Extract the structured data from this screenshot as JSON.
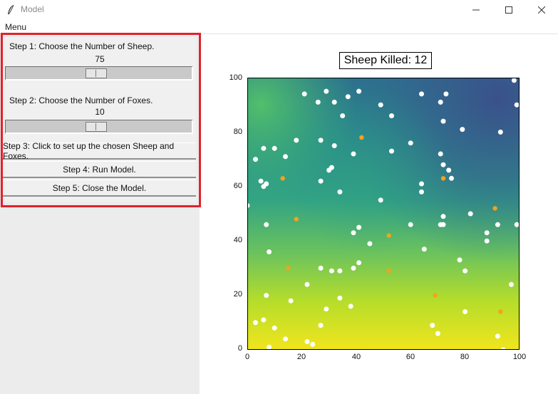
{
  "window": {
    "title": "Model"
  },
  "menu": {
    "label": "Menu"
  },
  "controls": {
    "step1_label": "Step 1: Choose the Number of Sheep.",
    "sheep_value": "75",
    "sheep_slider_fraction": 0.48,
    "step2_label": "Step 2: Choose the Number of Foxes.",
    "fox_value": "10",
    "fox_slider_fraction": 0.48,
    "step3_label": "Step 3: Click to set up the chosen Sheep and Foxes.",
    "step4_label": "Step 4: Run Model.",
    "step5_label": "Step 5: Close the Model."
  },
  "plot": {
    "title": "Sheep Killed: 12",
    "xticks": [
      "0",
      "20",
      "40",
      "60",
      "80",
      "100"
    ],
    "yticks": [
      "100",
      "80",
      "60",
      "40",
      "20",
      "0"
    ]
  },
  "chart_data": {
    "type": "scatter",
    "background": "heatmap",
    "xlim": [
      0,
      100
    ],
    "ylim": [
      0,
      100
    ],
    "colors": {
      "sheep": "#ffffff",
      "foxes": "#f5a21b",
      "accent": "#e0222b"
    },
    "sheep": [
      [
        21,
        94
      ],
      [
        26,
        91
      ],
      [
        29,
        95
      ],
      [
        32,
        91
      ],
      [
        37,
        93
      ],
      [
        41,
        95
      ],
      [
        49,
        90
      ],
      [
        64,
        94
      ],
      [
        71,
        91
      ],
      [
        73,
        94
      ],
      [
        53,
        86
      ],
      [
        35,
        86
      ],
      [
        72,
        84
      ],
      [
        79,
        81
      ],
      [
        98,
        99
      ],
      [
        99,
        90
      ],
      [
        93,
        80
      ],
      [
        10,
        74
      ],
      [
        6,
        74
      ],
      [
        3,
        70
      ],
      [
        14,
        71
      ],
      [
        27,
        77
      ],
      [
        32,
        75
      ],
      [
        39,
        72
      ],
      [
        53,
        73
      ],
      [
        71,
        72
      ],
      [
        60,
        76
      ],
      [
        18,
        77
      ],
      [
        72,
        68
      ],
      [
        74,
        66
      ],
      [
        75,
        63
      ],
      [
        30,
        66
      ],
      [
        31,
        67
      ],
      [
        5,
        62
      ],
      [
        7,
        61
      ],
      [
        6,
        60
      ],
      [
        27,
        62
      ],
      [
        34,
        58
      ],
      [
        64,
        61
      ],
      [
        64,
        58
      ],
      [
        49,
        55
      ],
      [
        0,
        53
      ],
      [
        82,
        50
      ],
      [
        92,
        46
      ],
      [
        99,
        46
      ],
      [
        88,
        43
      ],
      [
        71,
        46
      ],
      [
        72,
        49
      ],
      [
        72,
        46
      ],
      [
        60,
        46
      ],
      [
        7,
        46
      ],
      [
        39,
        43
      ],
      [
        41,
        45
      ],
      [
        45,
        39
      ],
      [
        88,
        40
      ],
      [
        65,
        37
      ],
      [
        8,
        36
      ],
      [
        27,
        30
      ],
      [
        31,
        29
      ],
      [
        34,
        29
      ],
      [
        39,
        30
      ],
      [
        41,
        32
      ],
      [
        78,
        33
      ],
      [
        80,
        29
      ],
      [
        22,
        24
      ],
      [
        97,
        24
      ],
      [
        34,
        19
      ],
      [
        38,
        16
      ],
      [
        7,
        20
      ],
      [
        16,
        18
      ],
      [
        29,
        15
      ],
      [
        80,
        14
      ],
      [
        3,
        10
      ],
      [
        6,
        11
      ],
      [
        10,
        8
      ],
      [
        14,
        4
      ],
      [
        22,
        3
      ],
      [
        27,
        9
      ],
      [
        68,
        9
      ],
      [
        70,
        6
      ],
      [
        92,
        5
      ],
      [
        24,
        2
      ],
      [
        8,
        1
      ],
      [
        94,
        0
      ]
    ],
    "foxes": [
      [
        42,
        78
      ],
      [
        13,
        63
      ],
      [
        72,
        63
      ],
      [
        18,
        48
      ],
      [
        52,
        42
      ],
      [
        91,
        52
      ],
      [
        15,
        30
      ],
      [
        52,
        29
      ],
      [
        69,
        20
      ],
      [
        93,
        14
      ]
    ]
  }
}
